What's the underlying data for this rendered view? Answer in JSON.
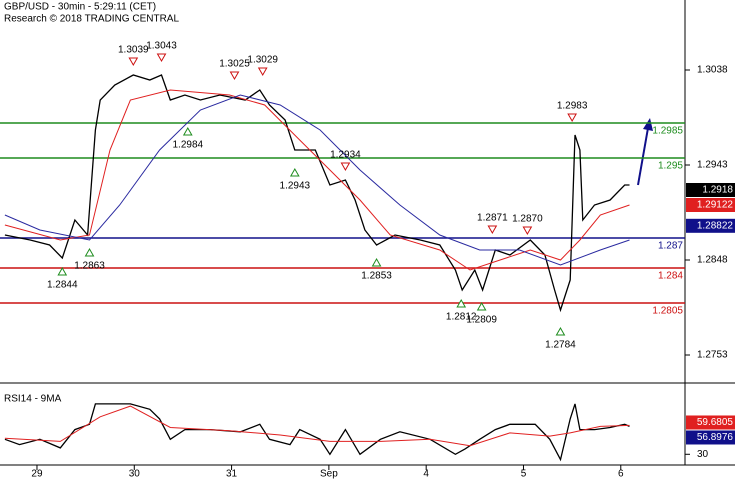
{
  "chart_data": [
    {
      "type": "line",
      "title": "GBP/USD - 30min - 5:29:11 (CET)",
      "subtitle": "Research © 2018 TRADING CENTRAL",
      "xlim": [
        -0.38,
        6.66
      ],
      "ylim": [
        1.2728,
        1.3108
      ],
      "xticks": [
        {
          "value": 0,
          "label": "29"
        },
        {
          "value": 1,
          "label": "30"
        },
        {
          "value": 2,
          "label": "31"
        },
        {
          "value": 3,
          "label": "Sep"
        },
        {
          "value": 4,
          "label": "4"
        },
        {
          "value": 5,
          "label": "5"
        },
        {
          "value": 6,
          "label": "6"
        }
      ],
      "yticks": [
        1.3038,
        1.2943,
        1.2848,
        1.2753
      ],
      "series": [
        {
          "color": "#000000",
          "x": [
            -0.33,
            -0.07,
            0.13,
            0.26,
            0.39,
            0.52,
            0.6,
            0.65,
            0.8,
            0.99,
            1.16,
            1.28,
            1.37,
            1.52,
            1.68,
            1.88,
            2.14,
            2.29,
            2.39,
            2.55,
            2.65,
            2.86,
            3.01,
            3.17,
            3.27,
            3.37,
            3.49,
            3.68,
            3.94,
            4.14,
            4.3,
            4.37,
            4.5,
            4.58,
            4.71,
            4.86,
            5.07,
            5.22,
            5.32,
            5.38,
            5.48,
            5.53,
            5.58,
            5.61,
            5.73,
            5.89,
            6.04,
            6.09
          ],
          "values": [
            1.2873,
            1.2868,
            1.2863,
            1.285,
            1.2888,
            1.2873,
            1.2978,
            1.3008,
            1.3023,
            1.3033,
            1.3028,
            1.3033,
            1.3008,
            1.3013,
            1.3008,
            1.3013,
            1.3008,
            1.3018,
            1.3003,
            1.2988,
            1.2958,
            1.2958,
            1.2923,
            1.2928,
            1.2908,
            1.2878,
            1.2863,
            1.2873,
            1.2868,
            1.2863,
            1.2838,
            1.2818,
            1.2838,
            1.2818,
            1.2858,
            1.2853,
            1.2868,
            1.2853,
            1.2818,
            1.2798,
            1.2828,
            1.2973,
            1.2958,
            1.2888,
            1.2903,
            1.2908,
            1.2923,
            1.2923
          ]
        },
        {
          "color": "#e02020",
          "x": [
            -0.33,
            0.24,
            0.54,
            0.75,
            0.96,
            1.37,
            1.98,
            2.34,
            2.7,
            3.01,
            3.32,
            3.63,
            4.14,
            4.45,
            4.76,
            5.07,
            5.38,
            5.58,
            5.79,
            6.09
          ],
          "values": [
            1.2883,
            1.2868,
            1.2873,
            1.2958,
            1.3008,
            1.3018,
            1.3013,
            1.3003,
            1.2968,
            1.2938,
            1.2908,
            1.2873,
            1.2858,
            1.2838,
            1.2848,
            1.2858,
            1.2848,
            1.2868,
            1.2893,
            1.2903
          ]
        },
        {
          "color": "#2a2aa0",
          "x": [
            -0.33,
            0.03,
            0.54,
            0.85,
            1.26,
            1.68,
            2.09,
            2.5,
            2.91,
            3.32,
            3.73,
            4.14,
            4.55,
            4.96,
            5.38,
            5.79,
            6.09
          ],
          "values": [
            1.2893,
            1.2878,
            1.2868,
            1.2903,
            1.2958,
            1.2998,
            1.3013,
            1.3003,
            1.2978,
            1.2938,
            1.2903,
            1.2873,
            1.2858,
            1.2858,
            1.2843,
            1.2858,
            1.2868
          ]
        }
      ],
      "levels": [
        {
          "value": 1.2985,
          "color": "#1e8c1e"
        },
        {
          "value": 1.295,
          "color": "#1e8c1e"
        },
        {
          "value": 1.287,
          "color": "#10108a"
        },
        {
          "value": 1.284,
          "color": "#cc1010"
        },
        {
          "value": 1.2805,
          "color": "#cc1010"
        }
      ],
      "annotations": [
        {
          "x": 0.99,
          "value": 1.3039,
          "kind": "high"
        },
        {
          "x": 1.28,
          "value": 1.3043,
          "kind": "high"
        },
        {
          "x": 2.03,
          "value": 1.3025,
          "kind": "high"
        },
        {
          "x": 2.32,
          "value": 1.3029,
          "kind": "high"
        },
        {
          "x": 1.55,
          "value": 1.2984,
          "kind": "low"
        },
        {
          "x": 2.65,
          "value": 1.2943,
          "kind": "low"
        },
        {
          "x": 3.17,
          "value": 1.2934,
          "kind": "high"
        },
        {
          "x": 0.54,
          "value": 1.2863,
          "kind": "low"
        },
        {
          "x": 0.26,
          "value": 1.2844,
          "kind": "low"
        },
        {
          "x": 3.49,
          "value": 1.2853,
          "kind": "low"
        },
        {
          "x": 4.68,
          "value": 1.2871,
          "kind": "high"
        },
        {
          "x": 5.04,
          "value": 1.287,
          "label": "1.2870",
          "kind": "high"
        },
        {
          "x": 4.36,
          "value": 1.2812,
          "kind": "low"
        },
        {
          "x": 4.57,
          "value": 1.2809,
          "kind": "low"
        },
        {
          "x": 5.38,
          "value": 1.2784,
          "kind": "low"
        },
        {
          "x": 5.5,
          "value": 1.2983,
          "kind": "high"
        }
      ],
      "price_tags": [
        {
          "value": 1.2918,
          "color": "#000000"
        },
        {
          "value": 1.29122,
          "color": "#e02020"
        },
        {
          "value": 1.28822,
          "color": "#10108a"
        }
      ]
    },
    {
      "type": "line",
      "title": "RSI14 - 9MA",
      "ylim": [
        20,
        90
      ],
      "yticks": [
        30
      ],
      "series": [
        {
          "color": "#000000",
          "x": [
            -0.33,
            -0.18,
            0.03,
            0.24,
            0.39,
            0.54,
            0.6,
            0.75,
            0.96,
            1.16,
            1.26,
            1.37,
            1.52,
            1.78,
            2.09,
            2.29,
            2.39,
            2.6,
            2.7,
            2.91,
            3.01,
            3.17,
            3.32,
            3.53,
            3.73,
            4.04,
            4.3,
            4.4,
            4.55,
            4.71,
            4.86,
            5.12,
            5.27,
            5.38,
            5.48,
            5.53,
            5.58,
            5.73,
            5.89,
            6.04,
            6.09
          ],
          "values": [
            44,
            39,
            44,
            36,
            53,
            58,
            77,
            77,
            77,
            72,
            63,
            44,
            53,
            53,
            51,
            58,
            44,
            39,
            53,
            44,
            30,
            53,
            30,
            44,
            51,
            44,
            30,
            35,
            44,
            53,
            58,
            58,
            44,
            25,
            63,
            77,
            53,
            53,
            55,
            58,
            56
          ]
        },
        {
          "color": "#e02020",
          "x": [
            -0.33,
            0.24,
            0.65,
            0.96,
            1.37,
            1.98,
            2.5,
            3.01,
            3.53,
            4.04,
            4.45,
            4.86,
            5.27,
            5.48,
            5.79,
            6.09
          ],
          "values": [
            45,
            42,
            65,
            75,
            55,
            52,
            48,
            42,
            42,
            44,
            38,
            50,
            47,
            50,
            56,
            57
          ]
        }
      ],
      "price_tags": [
        {
          "value": 59.6805,
          "color": "#e02020"
        },
        {
          "value": 56.8976,
          "color": "#10108a"
        }
      ]
    }
  ]
}
